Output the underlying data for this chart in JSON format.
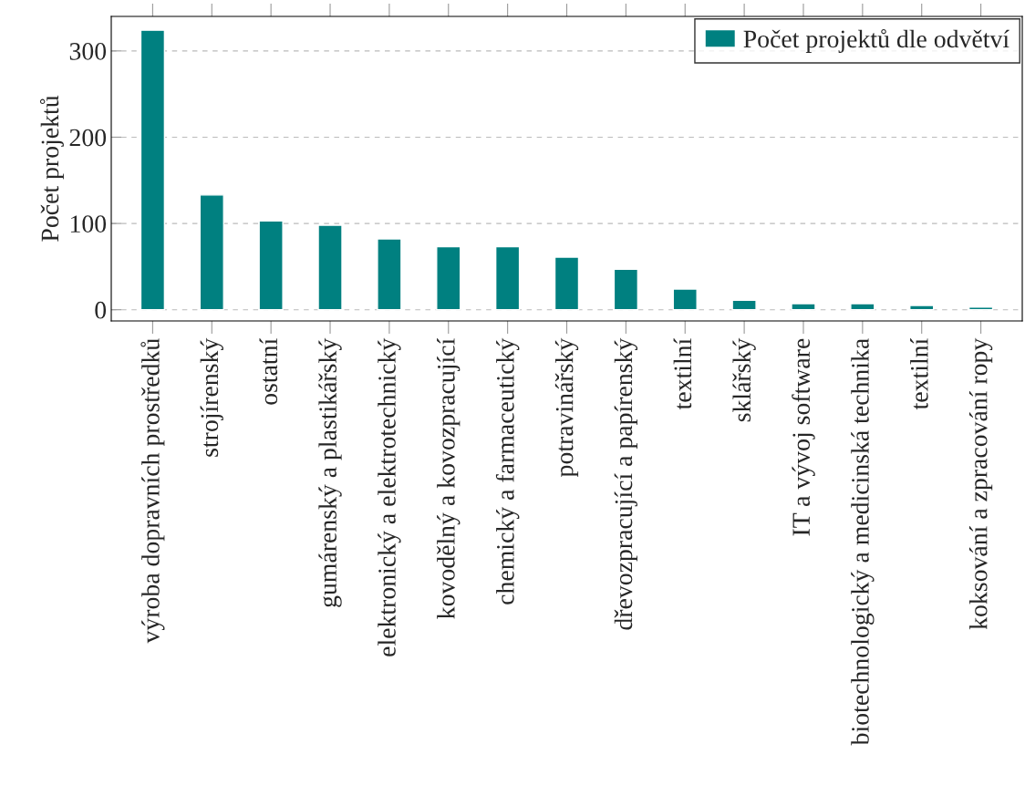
{
  "chart_data": {
    "type": "bar",
    "ylabel": "Počet projektů",
    "categories": [
      "výroba dopravních prostředků",
      "strojírenský",
      "ostatní",
      "gumárenský a plastikářský",
      "elektronický a elektrotechnický",
      "kovodělný a kovozpracující",
      "chemický a farmaceutický",
      "potravinářský",
      "dřevozpracující a papírenský",
      "textilní",
      "sklářský",
      "IT a vývoj software",
      "biotechnologický a medicinská technika",
      "textilní",
      "koksování a zpracování ropy"
    ],
    "series": [
      {
        "name": "Počet projektů dle odvětví",
        "color": "#008080",
        "values": [
          324,
          133,
          103,
          98,
          82,
          73,
          73,
          61,
          47,
          24,
          11,
          7,
          7,
          5,
          3
        ]
      }
    ],
    "ylim": [
      -13,
      340
    ],
    "yticks": [
      0,
      100,
      200,
      300
    ],
    "grid": "y",
    "legend": "top right"
  }
}
